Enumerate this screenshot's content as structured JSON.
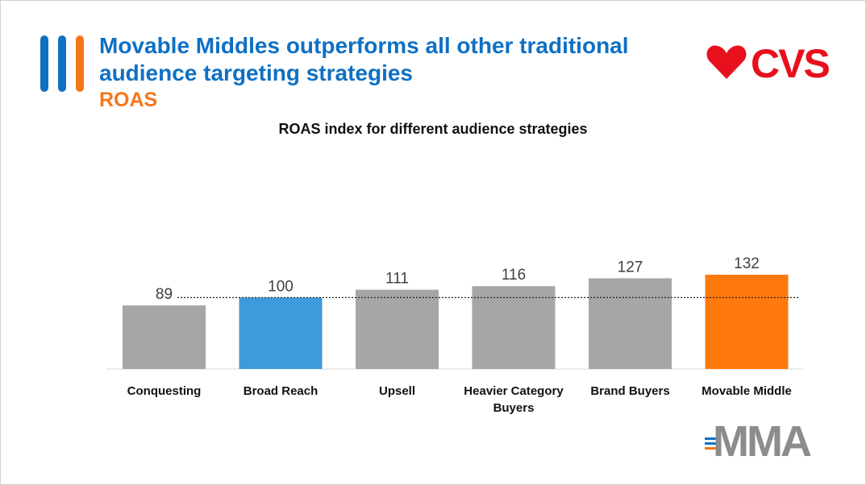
{
  "slide": {
    "title": "Movable Middles outperforms all other traditional audience targeting strategies",
    "subtitle": "ROAS",
    "accent_blue": "#0f70c4",
    "accent_orange": "#f5761a"
  },
  "logos": {
    "cvs": {
      "text": "CVS",
      "icon": "heart-icon",
      "color": "#e8101d"
    },
    "mma": {
      "text": "MMA",
      "color": "#8c8c8c"
    }
  },
  "chart_data": {
    "type": "bar",
    "title": "ROAS index for different audience strategies",
    "categories": [
      "Conquesting",
      "Broad Reach",
      "Upsell",
      "Heavier Category Buyers",
      "Brand Buyers",
      "Movable Middle"
    ],
    "values": [
      89,
      100,
      111,
      116,
      127,
      132
    ],
    "bar_colors": [
      "#a6a6a6",
      "#3d9bdc",
      "#a6a6a6",
      "#a6a6a6",
      "#a6a6a6",
      "#ff7a0d"
    ],
    "reference_line": 100,
    "ylim": [
      0,
      132
    ],
    "xlabel": "",
    "ylabel": "",
    "grid": false,
    "legend": "none"
  }
}
